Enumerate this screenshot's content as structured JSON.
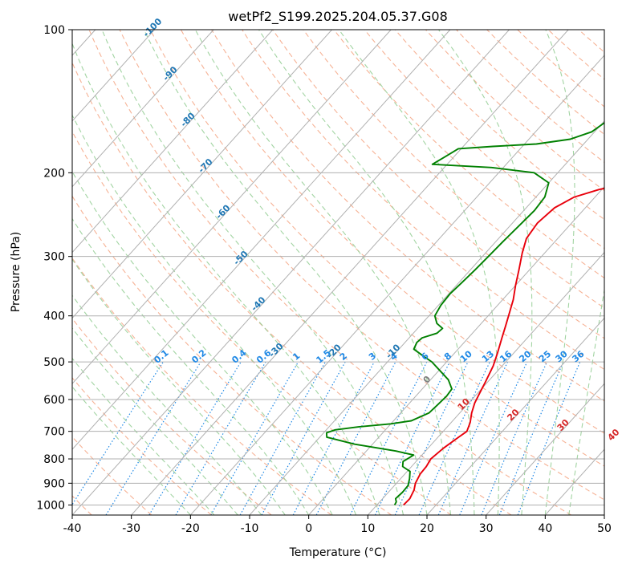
{
  "chart_data": {
    "type": "line",
    "title": "wetPf2_S199.2025.204.05.37.G08",
    "xlabel": "Temperature (°C)",
    "ylabel": "Pressure (hPa)",
    "xlim": [
      -40,
      50
    ],
    "ylim": [
      1050,
      100
    ],
    "y_scale": "log",
    "grid": true,
    "x_ticks": [
      "-40",
      "-30",
      "-20",
      "-10",
      "0",
      "10",
      "20",
      "30",
      "40",
      "50"
    ],
    "y_ticks": [
      "100",
      "200",
      "300",
      "400",
      "500",
      "600",
      "700",
      "800",
      "900",
      "1000"
    ],
    "series": [
      {
        "color": "#e8000b",
        "points": [
          [
            14.5,
            1000
          ],
          [
            14.6,
            970
          ],
          [
            14.0,
            930
          ],
          [
            13.2,
            900
          ],
          [
            12.6,
            860
          ],
          [
            12.5,
            830
          ],
          [
            12.1,
            800
          ],
          [
            12.6,
            760
          ],
          [
            13.5,
            720
          ],
          [
            14.0,
            700
          ],
          [
            13.2,
            670
          ],
          [
            12.0,
            640
          ],
          [
            11.0,
            610
          ],
          [
            10.3,
            580
          ],
          [
            9.6,
            550
          ],
          [
            8.5,
            510
          ],
          [
            7.3,
            480
          ],
          [
            5.7,
            445
          ],
          [
            4.5,
            420
          ],
          [
            3.2,
            395
          ],
          [
            1.8,
            370
          ],
          [
            0.0,
            345
          ],
          [
            -1.8,
            320
          ],
          [
            -3.8,
            295
          ],
          [
            -5.3,
            275
          ],
          [
            -5.8,
            255
          ],
          [
            -5.2,
            237
          ],
          [
            -3.5,
            225
          ],
          [
            -0.5,
            217
          ],
          [
            3.5,
            210
          ],
          [
            7.5,
            203
          ],
          [
            10.0,
            197
          ],
          [
            11.5,
            190
          ],
          [
            12.5,
            180
          ],
          [
            12.8,
            175
          ],
          [
            12.5,
            168
          ],
          [
            12.0,
            160
          ],
          [
            12.2,
            152
          ],
          [
            13.0,
            145
          ],
          [
            14.5,
            138
          ],
          [
            15.5,
            130
          ],
          [
            16.5,
            120
          ],
          [
            17.5,
            115
          ],
          [
            18.3,
            110
          ],
          [
            19.0,
            105
          ],
          [
            19.5,
            100
          ]
        ]
      },
      {
        "color": "#008000",
        "points": [
          [
            13.0,
            1000
          ],
          [
            12.8,
            985
          ],
          [
            12.2,
            970
          ],
          [
            12.4,
            940
          ],
          [
            12.3,
            910
          ],
          [
            11.5,
            880
          ],
          [
            10.5,
            850
          ],
          [
            8.5,
            830
          ],
          [
            7.8,
            810
          ],
          [
            8.6,
            785
          ],
          [
            5.0,
            770
          ],
          [
            -3.0,
            745
          ],
          [
            -8.8,
            720
          ],
          [
            -9.5,
            705
          ],
          [
            -8.5,
            695
          ],
          [
            -5.0,
            685
          ],
          [
            0.0,
            675
          ],
          [
            3.0,
            665
          ],
          [
            4.8,
            640
          ],
          [
            5.0,
            615
          ],
          [
            5.2,
            590
          ],
          [
            5.0,
            570
          ],
          [
            3.0,
            545
          ],
          [
            0.0,
            520
          ],
          [
            -2.5,
            500
          ],
          [
            -5.0,
            485
          ],
          [
            -7.5,
            470
          ],
          [
            -8.0,
            455
          ],
          [
            -7.8,
            445
          ],
          [
            -6.0,
            435
          ],
          [
            -5.8,
            425
          ],
          [
            -7.5,
            415
          ],
          [
            -9.0,
            400
          ],
          [
            -9.6,
            380
          ],
          [
            -9.8,
            360
          ],
          [
            -9.5,
            340
          ],
          [
            -9.2,
            320
          ],
          [
            -9.0,
            300
          ],
          [
            -8.8,
            280
          ],
          [
            -8.5,
            260
          ],
          [
            -8.2,
            240
          ],
          [
            -8.5,
            225
          ],
          [
            -10.0,
            210
          ],
          [
            -14.0,
            200
          ],
          [
            -22.0,
            195
          ],
          [
            -32.5,
            192
          ],
          [
            -31.5,
            185
          ],
          [
            -30.5,
            178
          ],
          [
            -25.0,
            176
          ],
          [
            -18.0,
            174
          ],
          [
            -13.0,
            170
          ],
          [
            -10.5,
            164
          ],
          [
            -9.5,
            155
          ],
          [
            -9.0,
            145
          ],
          [
            -8.0,
            138
          ],
          [
            -5.0,
            130
          ],
          [
            -2.0,
            122
          ],
          [
            0.0,
            117
          ],
          [
            0.5,
            110
          ],
          [
            1.5,
            105
          ],
          [
            2.5,
            100
          ]
        ]
      }
    ],
    "dry_adiabat_labels": [
      "-100",
      "-90",
      "-80",
      "-70",
      "-60",
      "-50",
      "-40",
      "-30",
      "-20",
      "-10",
      "0",
      "10",
      "20",
      "30",
      "40"
    ],
    "mixing_ratio_labels": [
      "0.1",
      "0.2",
      "0.4",
      "0.6",
      "1",
      "1.5",
      "2",
      "3",
      "4",
      "6",
      "8",
      "10",
      "13",
      "16",
      "20",
      "25",
      "30",
      "36"
    ],
    "line_colors": {
      "isotherm": "#b0b0b0",
      "isobar": "#b0b0b0",
      "dry_adiabat": "#f4a582",
      "moist_adiabat": "#98cf98",
      "mixing_ratio": "#1e88e5",
      "dry_label": "#1f77b4",
      "warm_label": "#d62728",
      "zero_label": "#7f7f7f"
    }
  }
}
